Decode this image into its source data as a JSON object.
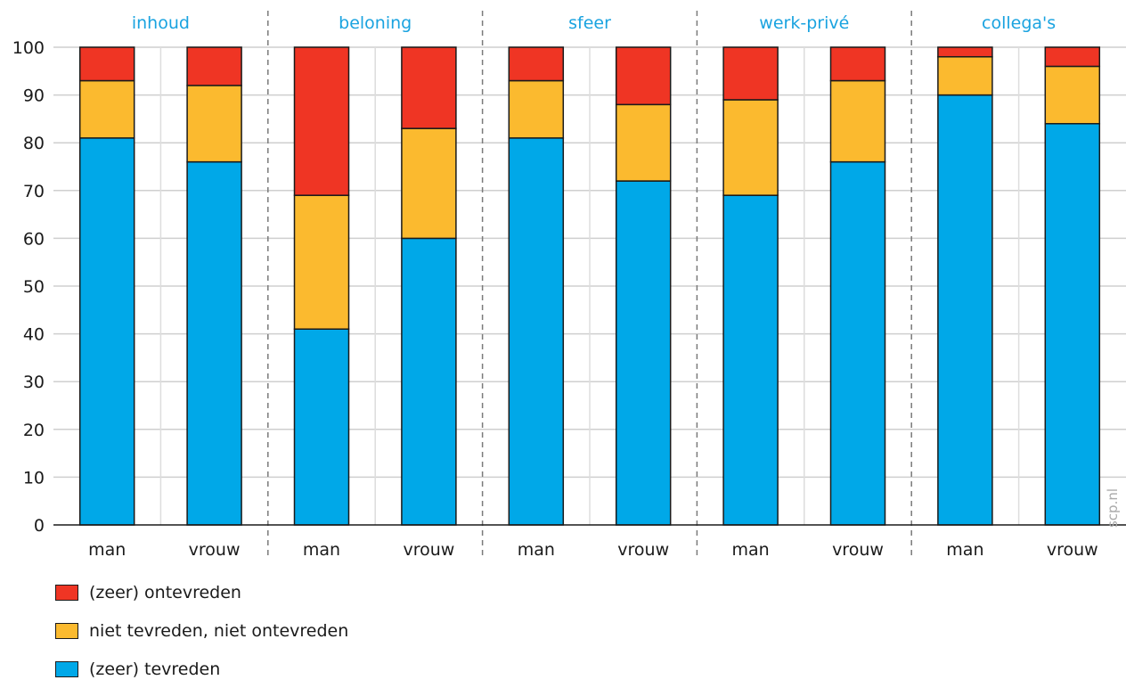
{
  "chart_data": {
    "type": "bar",
    "stacked": true,
    "groups": [
      "inhoud",
      "beloning",
      "sfeer",
      "werk-privé",
      "collega's"
    ],
    "categories": [
      "man",
      "vrouw",
      "man",
      "vrouw",
      "man",
      "vrouw",
      "man",
      "vrouw",
      "man",
      "vrouw"
    ],
    "series": [
      {
        "name": "(zeer) tevreden",
        "color": "#00a8e8",
        "values": [
          81,
          76,
          41,
          60,
          81,
          72,
          69,
          76,
          90,
          84
        ]
      },
      {
        "name": "niet tevreden, niet ontevreden",
        "color": "#fbba2f",
        "values": [
          12,
          16,
          28,
          23,
          12,
          16,
          20,
          17,
          8,
          12
        ]
      },
      {
        "name": "(zeer) ontevreden",
        "color": "#ef3524",
        "values": [
          7,
          8,
          31,
          17,
          7,
          12,
          11,
          7,
          2,
          4
        ]
      }
    ],
    "ylim": [
      0,
      100
    ],
    "yticks": [
      "0",
      "10",
      "20",
      "30",
      "40",
      "50",
      "60",
      "70",
      "80",
      "90",
      "100"
    ],
    "grid": true,
    "legend_position": "bottom-left",
    "legend_order": [
      "(zeer) ontevreden",
      "niet tevreden, niet ontevreden",
      "(zeer) tevreden"
    ]
  },
  "watermark": "scp.nl"
}
